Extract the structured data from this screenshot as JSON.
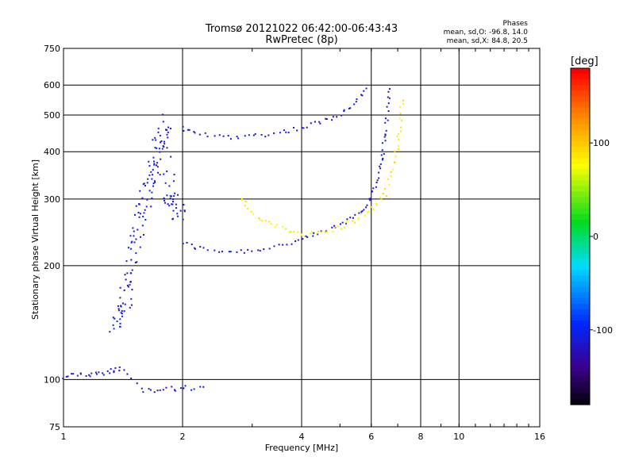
{
  "chart_data": {
    "type": "scatter",
    "title": "Tromsø 20121022 06:42:00-06:43:43",
    "subtitle": "RwPretec (8p)",
    "xlabel": "Frequency [MHz]",
    "ylabel": "Stationary phase Virtual Height [km]",
    "xscale": "log",
    "yscale": "log",
    "xlim": [
      1,
      16
    ],
    "ylim": [
      75,
      750
    ],
    "xticks": [
      1,
      2,
      4,
      6,
      8,
      10,
      16
    ],
    "yticks": [
      75,
      100,
      200,
      300,
      400,
      500,
      600,
      750
    ],
    "grid": true,
    "colorbar": {
      "label": "[deg]",
      "range": [
        -180,
        180
      ],
      "ticks": [
        100,
        0,
        -100
      ]
    },
    "stats": {
      "heading": "Phases",
      "line_o": "mean, sd,O: -96.8, 14.0",
      "line_x": "mean, sd,X:  84.8, 20.5"
    },
    "traces": [
      {
        "name": "F-layer trace (blue)",
        "color_deg": -110,
        "points": [
          [
            2.0,
            230
          ],
          [
            2.2,
            222
          ],
          [
            2.6,
            218
          ],
          [
            3.0,
            219
          ],
          [
            3.5,
            226
          ],
          [
            4.0,
            234
          ],
          [
            4.5,
            244
          ],
          [
            5.0,
            256
          ],
          [
            5.5,
            272
          ],
          [
            5.9,
            292
          ],
          [
            6.1,
            318
          ],
          [
            6.3,
            360
          ],
          [
            6.4,
            400
          ],
          [
            6.5,
            450
          ],
          [
            6.6,
            520
          ],
          [
            6.7,
            610
          ]
        ]
      },
      {
        "name": "second hop trace",
        "color_deg": -110,
        "points": [
          [
            2.0,
            460
          ],
          [
            2.2,
            445
          ],
          [
            2.6,
            438
          ],
          [
            3.0,
            440
          ],
          [
            3.5,
            450
          ],
          [
            4.0,
            462
          ],
          [
            4.5,
            480
          ],
          [
            5.0,
            505
          ],
          [
            5.5,
            540
          ],
          [
            5.9,
            600
          ]
        ]
      },
      {
        "name": "X-mode trace (yellow-green)",
        "color_deg": 85,
        "points": [
          [
            2.8,
            300
          ],
          [
            3.0,
            275
          ],
          [
            3.3,
            258
          ],
          [
            3.7,
            248
          ],
          [
            4.1,
            242
          ],
          [
            4.6,
            245
          ],
          [
            5.1,
            255
          ],
          [
            5.6,
            268
          ],
          [
            6.1,
            285
          ],
          [
            6.5,
            310
          ],
          [
            6.8,
            360
          ],
          [
            7.0,
            420
          ],
          [
            7.1,
            480
          ],
          [
            7.2,
            560
          ]
        ]
      },
      {
        "name": "ionogram cloud",
        "color_deg": -105,
        "points": [
          [
            1.35,
            140
          ],
          [
            1.4,
            150
          ],
          [
            1.45,
            170
          ],
          [
            1.5,
            210
          ],
          [
            1.55,
            250
          ],
          [
            1.6,
            290
          ],
          [
            1.65,
            330
          ],
          [
            1.7,
            370
          ],
          [
            1.75,
            420
          ],
          [
            1.8,
            480
          ],
          [
            1.85,
            300
          ],
          [
            1.9,
            290
          ],
          [
            2.0,
            270
          ]
        ]
      },
      {
        "name": "lower echoes",
        "color_deg": -110,
        "points": [
          [
            1.0,
            102
          ],
          [
            1.1,
            104
          ],
          [
            1.2,
            103
          ],
          [
            1.3,
            105
          ],
          [
            1.4,
            107
          ],
          [
            1.6,
            94
          ],
          [
            1.8,
            94
          ],
          [
            2.0,
            95
          ],
          [
            2.3,
            95
          ]
        ]
      }
    ]
  }
}
